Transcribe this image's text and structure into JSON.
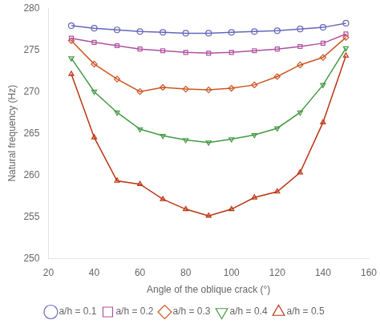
{
  "chart_data": {
    "type": "line",
    "xlabel": "Angle of the oblique crack (°)",
    "ylabel": "Natural frequency (Hz)",
    "x": [
      30,
      40,
      50,
      60,
      70,
      80,
      90,
      100,
      110,
      120,
      130,
      140,
      150
    ],
    "series": [
      {
        "name": "a/h = 0.1",
        "color": "#6666bb",
        "marker": "circle",
        "values": [
          277.9,
          277.6,
          277.4,
          277.2,
          277.1,
          277.0,
          277.0,
          277.1,
          277.2,
          277.3,
          277.5,
          277.7,
          278.2
        ]
      },
      {
        "name": "a/h = 0.2",
        "color": "#b050a0",
        "marker": "square",
        "values": [
          276.4,
          275.9,
          275.5,
          275.1,
          274.9,
          274.7,
          274.6,
          274.7,
          274.9,
          275.1,
          275.4,
          275.8,
          276.9
        ]
      },
      {
        "name": "a/h = 0.3",
        "color": "#cc5522",
        "marker": "diamond",
        "values": [
          276.1,
          273.3,
          271.5,
          270.0,
          270.5,
          270.3,
          270.2,
          270.4,
          270.8,
          271.8,
          273.2,
          274.1,
          276.5
        ]
      },
      {
        "name": "a/h = 0.4",
        "color": "#449944",
        "marker": "triangle_down",
        "values": [
          274.0,
          270.0,
          267.5,
          265.5,
          264.7,
          264.2,
          263.9,
          264.3,
          264.8,
          265.6,
          267.5,
          270.8,
          275.2
        ]
      },
      {
        "name": "a/h = 0.5",
        "color": "#bb3311",
        "marker": "triangle_up",
        "values": [
          272.1,
          264.5,
          259.3,
          258.9,
          257.1,
          255.9,
          255.1,
          255.9,
          257.3,
          258.0,
          260.3,
          266.3,
          274.3
        ]
      }
    ],
    "xlim": [
      20,
      160
    ],
    "ylim": [
      250,
      280
    ],
    "xticks": [
      20,
      40,
      60,
      80,
      100,
      120,
      140,
      160
    ],
    "yticks": [
      250,
      255,
      260,
      265,
      270,
      275,
      280
    ],
    "grid": false,
    "legend": "bottom"
  }
}
